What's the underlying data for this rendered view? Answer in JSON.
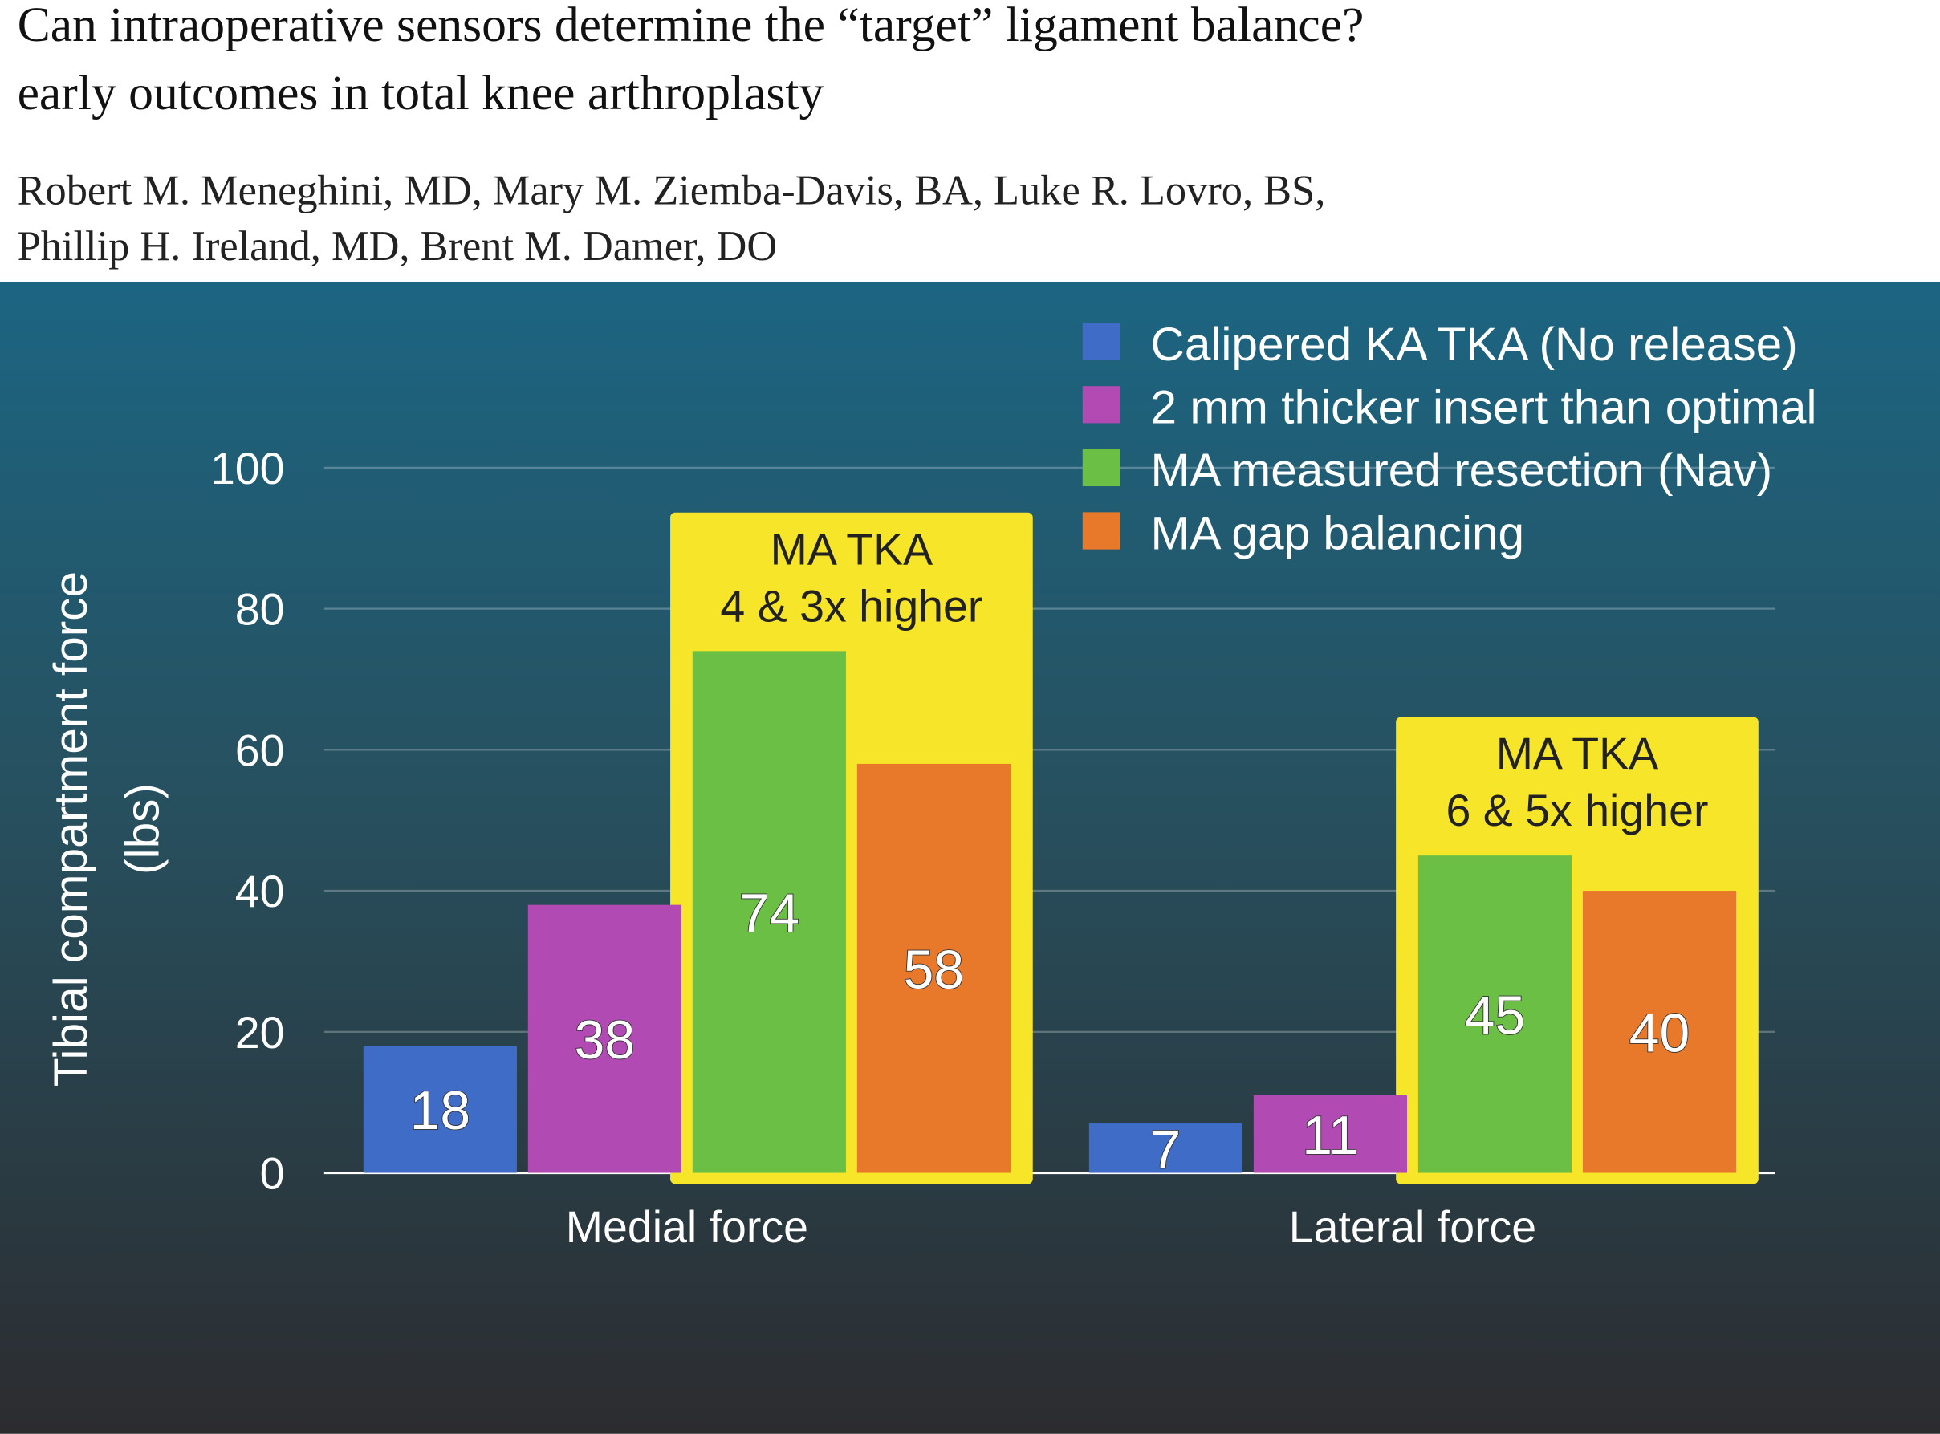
{
  "header": {
    "title": [
      "Can intraoperative sensors determine the “target” ligament balance?",
      "early outcomes in total knee arthroplasty"
    ],
    "authors": [
      "Robert M. Meneghini, MD, Mary M. Ziemba-Davis, BA, Luke R. Lovro, BS,",
      "Phillip H. Ireland, MD, Brent M. Damer, DO"
    ]
  },
  "chart_data": {
    "type": "bar",
    "y_label": [
      "Tibial compartment force",
      "(lbs)"
    ],
    "categories": [
      "Medial force",
      "Lateral force"
    ],
    "series": [
      {
        "name": "Calipered KA TKA (No release)",
        "color": "#3f6cc6",
        "values": [
          18,
          7
        ]
      },
      {
        "name": "2 mm thicker insert than optimal",
        "color": "#b24ab4",
        "values": [
          38,
          11
        ]
      },
      {
        "name": "MA measured resection (Nav)",
        "color": "#6cbf45",
        "values": [
          74,
          45
        ]
      },
      {
        "name": "MA gap balancing",
        "color": "#e9792a",
        "values": [
          58,
          40
        ]
      }
    ],
    "annotations": [
      {
        "lines": [
          "MA TKA",
          "4 & 3x higher"
        ]
      },
      {
        "lines": [
          "MA TKA",
          "6 & 5x higher"
        ]
      }
    ],
    "annotation_color": "#f7e52a",
    "ylim": [
      0,
      100
    ],
    "yticks": [
      0,
      20,
      40,
      60,
      80,
      100
    ],
    "grid": true,
    "legend": "upper right"
  }
}
